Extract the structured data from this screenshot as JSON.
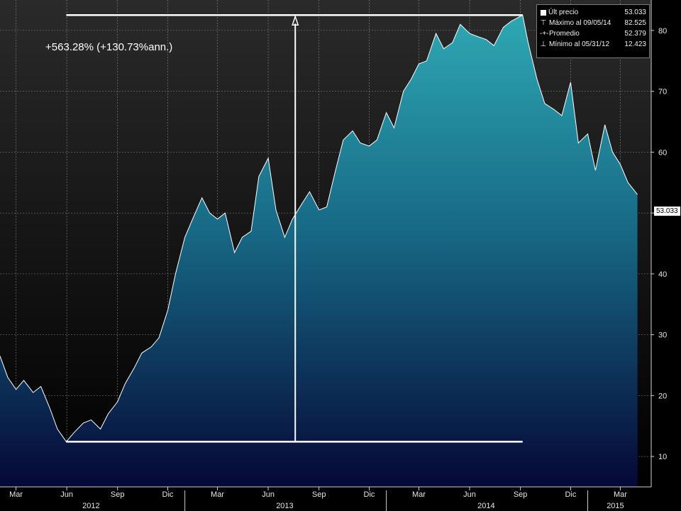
{
  "annotation": {
    "change_text": "+563.28% (+130.73%ann.)"
  },
  "legend": {
    "rows": [
      {
        "label": "Últ precio",
        "value": "53.033",
        "symbol": "square-icon"
      },
      {
        "label": "Máximo al 09/05/14",
        "value": "82.525",
        "symbol": "max-marker-icon",
        "glyph": "⊤"
      },
      {
        "label": "Promedio",
        "value": "52.379",
        "symbol": "average-marker-icon",
        "glyph": "-+-"
      },
      {
        "label": "Mínimo al 05/31/12",
        "value": "12.423",
        "symbol": "min-marker-icon",
        "glyph": "⊥"
      }
    ]
  },
  "last_price_badge": "53.033",
  "colors": {
    "background_top": "#1a1a1a",
    "area_top": "#2aa9b4",
    "area_bottom": "#050a3a",
    "line": "#ffffff"
  },
  "chart_data": {
    "type": "area",
    "title": "",
    "xlabel": "",
    "ylabel": "",
    "ylim": [
      5,
      85
    ],
    "y_ticks": [
      10,
      20,
      30,
      40,
      50,
      60,
      70,
      80
    ],
    "x_month_labels": [
      "Mar",
      "Jun",
      "Sep",
      "Dic",
      "Mar",
      "Jun",
      "Sep",
      "Dic",
      "Mar",
      "Jun",
      "Sep",
      "Dic",
      "Mar"
    ],
    "x_year_labels": [
      "2012",
      "2013",
      "2014",
      "2015"
    ],
    "y_axis_side": "right",
    "grid": true,
    "legend_position": "top-right",
    "x_start": "2012-02",
    "x_end": "2015-04",
    "series": [
      {
        "values": [
          [
            "2012-02-01",
            26.5
          ],
          [
            "2012-02-15",
            23.0
          ],
          [
            "2012-03-01",
            21.0
          ],
          [
            "2012-03-15",
            22.5
          ],
          [
            "2012-04-01",
            20.5
          ],
          [
            "2012-04-15",
            21.5
          ],
          [
            "2012-05-01",
            18.0
          ],
          [
            "2012-05-15",
            14.5
          ],
          [
            "2012-05-31",
            12.423
          ],
          [
            "2012-06-15",
            14.0
          ],
          [
            "2012-07-01",
            15.5
          ],
          [
            "2012-07-15",
            16.0
          ],
          [
            "2012-08-01",
            14.5
          ],
          [
            "2012-08-15",
            17.0
          ],
          [
            "2012-09-01",
            19.0
          ],
          [
            "2012-09-15",
            22.0
          ],
          [
            "2012-10-01",
            24.5
          ],
          [
            "2012-10-15",
            27.0
          ],
          [
            "2012-11-01",
            28.0
          ],
          [
            "2012-11-15",
            29.5
          ],
          [
            "2012-12-01",
            34.0
          ],
          [
            "2012-12-15",
            40.0
          ],
          [
            "2013-01-01",
            46.0
          ],
          [
            "2013-01-15",
            49.0
          ],
          [
            "2013-02-01",
            52.5
          ],
          [
            "2013-02-15",
            50.0
          ],
          [
            "2013-03-01",
            49.0
          ],
          [
            "2013-03-15",
            50.0
          ],
          [
            "2013-04-01",
            43.5
          ],
          [
            "2013-04-15",
            46.0
          ],
          [
            "2013-05-01",
            47.0
          ],
          [
            "2013-05-15",
            56.0
          ],
          [
            "2013-06-01",
            59.0
          ],
          [
            "2013-06-15",
            50.5
          ],
          [
            "2013-07-01",
            46.0
          ],
          [
            "2013-07-15",
            49.0
          ],
          [
            "2013-08-01",
            51.5
          ],
          [
            "2013-08-15",
            53.5
          ],
          [
            "2013-09-01",
            50.5
          ],
          [
            "2013-09-15",
            51.0
          ],
          [
            "2013-10-01",
            57.0
          ],
          [
            "2013-10-15",
            62.0
          ],
          [
            "2013-11-01",
            63.5
          ],
          [
            "2013-11-15",
            61.5
          ],
          [
            "2013-12-01",
            61.0
          ],
          [
            "2013-12-15",
            62.0
          ],
          [
            "2014-01-01",
            66.5
          ],
          [
            "2014-01-15",
            64.0
          ],
          [
            "2014-02-01",
            70.0
          ],
          [
            "2014-02-15",
            72.0
          ],
          [
            "2014-03-01",
            74.5
          ],
          [
            "2014-03-15",
            75.0
          ],
          [
            "2014-04-01",
            79.5
          ],
          [
            "2014-04-15",
            77.0
          ],
          [
            "2014-05-01",
            78.0
          ],
          [
            "2014-05-15",
            81.0
          ],
          [
            "2014-06-01",
            79.5
          ],
          [
            "2014-06-15",
            79.0
          ],
          [
            "2014-07-01",
            78.5
          ],
          [
            "2014-07-15",
            77.5
          ],
          [
            "2014-08-01",
            80.5
          ],
          [
            "2014-08-15",
            81.5
          ],
          [
            "2014-09-05",
            82.525
          ],
          [
            "2014-09-15",
            78.0
          ],
          [
            "2014-10-01",
            72.0
          ],
          [
            "2014-10-15",
            68.0
          ],
          [
            "2014-11-01",
            67.0
          ],
          [
            "2014-11-15",
            66.0
          ],
          [
            "2014-12-01",
            71.5
          ],
          [
            "2014-12-15",
            61.5
          ],
          [
            "2015-01-01",
            63.0
          ],
          [
            "2015-01-15",
            57.0
          ],
          [
            "2015-02-01",
            64.5
          ],
          [
            "2015-02-15",
            60.0
          ],
          [
            "2015-03-01",
            58.0
          ],
          [
            "2015-03-15",
            55.0
          ],
          [
            "2015-04-01",
            53.033
          ]
        ]
      }
    ],
    "annotations": {
      "max": {
        "date": "2014-09-05",
        "value": 82.525
      },
      "min": {
        "date": "2012-05-31",
        "value": 12.423
      },
      "range_arrow_date": "2013-07-20"
    }
  }
}
